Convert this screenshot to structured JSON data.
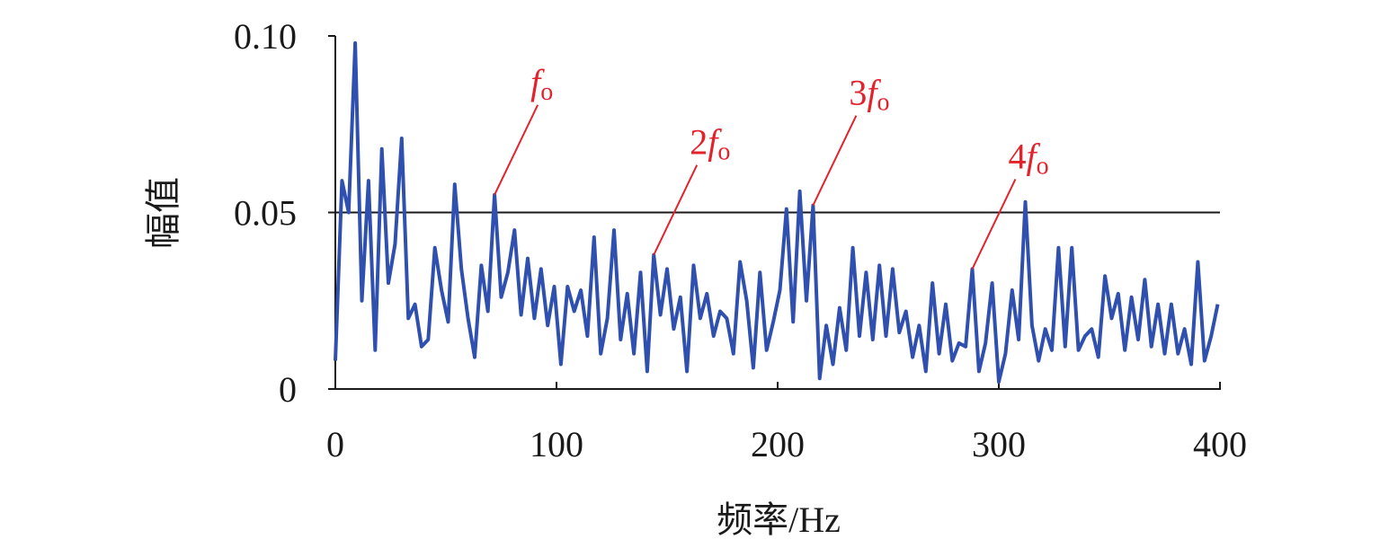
{
  "chart_data": {
    "type": "line",
    "x_label": "频率/Hz",
    "y_label": "幅值",
    "color": "#3050b0",
    "x": [
      0,
      3,
      6,
      9,
      12,
      15,
      18,
      21,
      24,
      27,
      30,
      33,
      36,
      39,
      42,
      45,
      48,
      51,
      54,
      57,
      60,
      63,
      66,
      69,
      72,
      75,
      78,
      81,
      84,
      87,
      90,
      93,
      96,
      99,
      102,
      105,
      108,
      111,
      114,
      117,
      120,
      123,
      126,
      129,
      132,
      135,
      138,
      141,
      144,
      147,
      150,
      153,
      156,
      159,
      162,
      165,
      168,
      171,
      174,
      177,
      180,
      183,
      186,
      189,
      192,
      195,
      198,
      201,
      204,
      207,
      210,
      213,
      216,
      219,
      222,
      225,
      228,
      231,
      234,
      237,
      240,
      243,
      246,
      249,
      252,
      255,
      258,
      261,
      264,
      267,
      270,
      273,
      276,
      279,
      282,
      285,
      288,
      291,
      294,
      297,
      300,
      303,
      306,
      309,
      312,
      315,
      318,
      321,
      324,
      327,
      330,
      333,
      336,
      339,
      342,
      345,
      348,
      351,
      354,
      357,
      360,
      363,
      366,
      369,
      372,
      375,
      378,
      381,
      384,
      387,
      390,
      393,
      396,
      399
    ],
    "values": [
      0.008,
      0.059,
      0.05,
      0.098,
      0.025,
      0.059,
      0.011,
      0.068,
      0.03,
      0.041,
      0.071,
      0.02,
      0.024,
      0.012,
      0.014,
      0.04,
      0.028,
      0.019,
      0.058,
      0.034,
      0.02,
      0.009,
      0.035,
      0.022,
      0.055,
      0.026,
      0.033,
      0.045,
      0.021,
      0.037,
      0.02,
      0.034,
      0.018,
      0.029,
      0.007,
      0.029,
      0.022,
      0.028,
      0.015,
      0.043,
      0.01,
      0.02,
      0.045,
      0.014,
      0.027,
      0.01,
      0.033,
      0.005,
      0.038,
      0.021,
      0.034,
      0.017,
      0.026,
      0.005,
      0.035,
      0.02,
      0.027,
      0.015,
      0.022,
      0.02,
      0.01,
      0.036,
      0.025,
      0.006,
      0.033,
      0.011,
      0.019,
      0.028,
      0.051,
      0.019,
      0.056,
      0.025,
      0.052,
      0.003,
      0.018,
      0.007,
      0.023,
      0.011,
      0.04,
      0.015,
      0.033,
      0.014,
      0.035,
      0.015,
      0.034,
      0.016,
      0.022,
      0.009,
      0.018,
      0.005,
      0.03,
      0.01,
      0.024,
      0.008,
      0.013,
      0.012,
      0.034,
      0.005,
      0.013,
      0.03,
      0.002,
      0.01,
      0.028,
      0.014,
      0.053,
      0.018,
      0.008,
      0.017,
      0.011,
      0.04,
      0.012,
      0.04,
      0.011,
      0.015,
      0.017,
      0.009,
      0.032,
      0.02,
      0.027,
      0.011,
      0.026,
      0.014,
      0.031,
      0.012,
      0.024,
      0.01,
      0.024,
      0.01,
      0.017,
      0.007,
      0.036,
      0.008,
      0.015,
      0.024
    ],
    "xlim": [
      0,
      400
    ],
    "xticks": [
      0,
      100,
      200,
      300,
      400
    ],
    "ylim": [
      0,
      0.1
    ],
    "yticks": [
      0,
      0.05,
      {
        "value": 0.1,
        "label": "0.10"
      }
    ],
    "grid": true,
    "annotations": [
      {
        "x": 72,
        "y": 0.055,
        "symbol": "f",
        "sub": "o"
      },
      {
        "x": 144,
        "y": 0.038,
        "prefix": "2",
        "symbol": "f",
        "sub": "o"
      },
      {
        "x": 216,
        "y": 0.052,
        "prefix": "3",
        "symbol": "f",
        "sub": "o"
      },
      {
        "x": 288,
        "y": 0.034,
        "prefix": "4",
        "symbol": "f",
        "sub": "o"
      }
    ],
    "annotation_color": "#e3232c"
  }
}
